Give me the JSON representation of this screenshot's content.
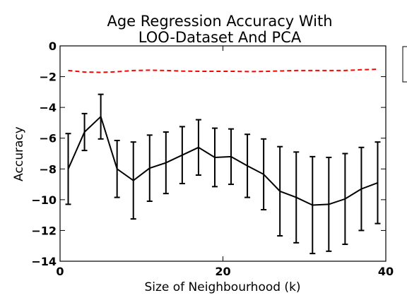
{
  "chart_data": {
    "type": "line",
    "title": [
      "Age Regression Accuracy With",
      "LOO-Dataset And PCA"
    ],
    "xlabel": "Size of Neighbourhood (k)",
    "ylabel": "Accuracy",
    "xlim": [
      0,
      40
    ],
    "ylim": [
      -14,
      0
    ],
    "xticks": [
      0,
      20,
      40
    ],
    "yticks": [
      0,
      -2,
      -4,
      -6,
      -8,
      -10,
      -12,
      -14
    ],
    "grid": false,
    "legend": {
      "placement": "top-right-outside",
      "entries": []
    },
    "series": [
      {
        "style": "dashed",
        "color": "#ff0000",
        "x": [
          1,
          3,
          5,
          7,
          9,
          11,
          13,
          15,
          17,
          19,
          21,
          23,
          25,
          27,
          29,
          31,
          33,
          35,
          37,
          39
        ],
        "y": [
          -1.6,
          -1.7,
          -1.72,
          -1.68,
          -1.6,
          -1.58,
          -1.6,
          -1.64,
          -1.65,
          -1.65,
          -1.65,
          -1.67,
          -1.66,
          -1.63,
          -1.6,
          -1.6,
          -1.6,
          -1.6,
          -1.55,
          -1.52
        ]
      },
      {
        "style": "solid",
        "color": "#000000",
        "x": [
          1,
          3,
          5,
          7,
          9,
          11,
          13,
          15,
          17,
          19,
          21,
          23,
          25,
          27,
          29,
          31,
          33,
          35,
          37,
          39
        ],
        "y": [
          -8.0,
          -5.6,
          -4.6,
          -8.0,
          -8.75,
          -7.95,
          -7.6,
          -7.1,
          -6.6,
          -7.25,
          -7.2,
          -7.8,
          -8.35,
          -9.45,
          -9.85,
          -10.35,
          -10.3,
          -9.95,
          -9.3,
          -8.9
        ],
        "yerr": [
          2.3,
          1.2,
          1.45,
          1.85,
          2.5,
          2.15,
          2.0,
          1.85,
          1.8,
          1.9,
          1.8,
          2.05,
          2.3,
          2.9,
          2.95,
          3.15,
          3.05,
          2.95,
          2.7,
          2.65
        ]
      }
    ]
  }
}
